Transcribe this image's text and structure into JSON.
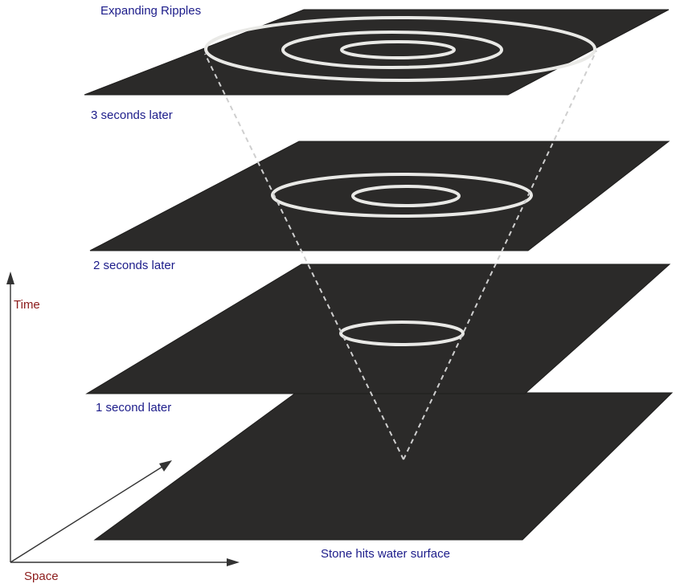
{
  "title": "Expanding Ripples",
  "layers": [
    {
      "label": "3 seconds later"
    },
    {
      "label": "2 seconds later"
    },
    {
      "label": "1 second later"
    },
    {
      "label": "Stone hits water surface"
    }
  ],
  "axes": {
    "time_label": "Time",
    "space_label": "Space"
  },
  "colors": {
    "text_blue": "#1c1c8a",
    "text_red": "#8b1a1a",
    "plane": "#2b2a29",
    "ripple": "#e9e9e6"
  }
}
